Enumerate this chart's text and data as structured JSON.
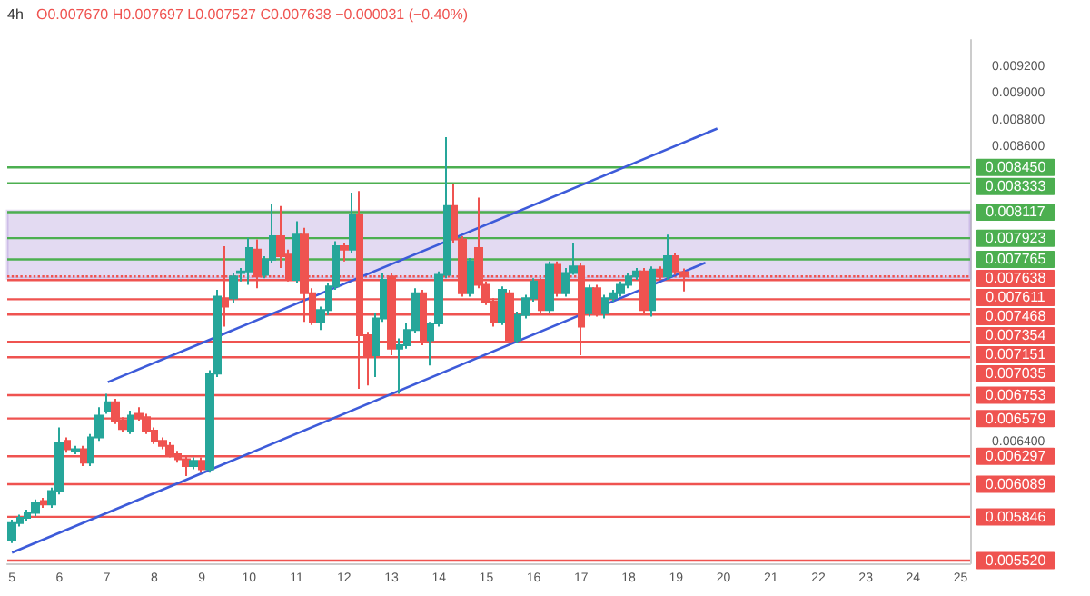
{
  "chart_data": {
    "type": "candlestick",
    "title": "4h",
    "annotations": [
      "O0.007670 H0.007697 L0.007527 C0.007638 −0.000031 (−0.40%)"
    ],
    "x": [
      5,
      5.17,
      5.33,
      5.5,
      5.67,
      5.83,
      6,
      6.17,
      6.33,
      6.5,
      6.67,
      6.83,
      7,
      7.17,
      7.33,
      7.5,
      7.67,
      7.83,
      8,
      8.17,
      8.33,
      8.5,
      8.67,
      8.83,
      9,
      9.17,
      9.33,
      9.5,
      9.67,
      9.83,
      10,
      10.17,
      10.33,
      10.5,
      10.67,
      10.83,
      11,
      11.17,
      11.33,
      11.5,
      11.67,
      11.83,
      12,
      12.17,
      12.33,
      12.5,
      12.67,
      12.83,
      13,
      13.17,
      13.33,
      13.5,
      13.67,
      13.83,
      14,
      14.17,
      14.33,
      14.5,
      14.67,
      14.83,
      15,
      15.17,
      15.33,
      15.5,
      15.67,
      15.83,
      16,
      16.17,
      16.33,
      16.5,
      16.67,
      16.83,
      17,
      17.17,
      17.33,
      17.5,
      17.67,
      17.83,
      18,
      18.17,
      18.33,
      18.5,
      18.67,
      18.83,
      19,
      19.17
    ],
    "ohlc": [
      [
        0.005675,
        0.005825,
        0.00565,
        0.0058
      ],
      [
        0.0058,
        0.005863,
        0.005775,
        0.005838
      ],
      [
        0.005838,
        0.0059,
        0.005813,
        0.005875
      ],
      [
        0.005875,
        0.005975,
        0.00585,
        0.00595
      ],
      [
        0.005963,
        0.005988,
        0.005913,
        0.005938
      ],
      [
        0.005938,
        0.006063,
        0.005913,
        0.006038
      ],
      [
        0.006038,
        0.006513,
        0.006013,
        0.0064
      ],
      [
        0.006413,
        0.006438,
        0.006325,
        0.00635
      ],
      [
        0.006338,
        0.006375,
        0.006313,
        0.00635
      ],
      [
        0.00635,
        0.006375,
        0.006225,
        0.00625
      ],
      [
        0.00625,
        0.006463,
        0.006225,
        0.006438
      ],
      [
        0.006438,
        0.006663,
        0.006413,
        0.0066
      ],
      [
        0.006638,
        0.006763,
        0.006613,
        0.0067
      ],
      [
        0.0067,
        0.006725,
        0.006538,
        0.006563
      ],
      [
        0.006563,
        0.006588,
        0.006475,
        0.0065
      ],
      [
        0.006488,
        0.006638,
        0.006463,
        0.0066
      ],
      [
        0.006613,
        0.006663,
        0.006563,
        0.006588
      ],
      [
        0.006588,
        0.006613,
        0.006463,
        0.006488
      ],
      [
        0.006488,
        0.006513,
        0.006388,
        0.006413
      ],
      [
        0.006413,
        0.006438,
        0.00635,
        0.006375
      ],
      [
        0.006375,
        0.0064,
        0.006288,
        0.006313
      ],
      [
        0.006313,
        0.006338,
        0.00625,
        0.006275
      ],
      [
        0.006275,
        0.0063,
        0.00615,
        0.006225
      ],
      [
        0.006225,
        0.006288,
        0.0062,
        0.006263
      ],
      [
        0.006263,
        0.006288,
        0.006175,
        0.0062
      ],
      [
        0.0062,
        0.006938,
        0.006175,
        0.006913
      ],
      [
        0.006913,
        0.007538,
        0.006888,
        0.007488
      ],
      [
        0.007475,
        0.007863,
        0.007263,
        0.007413
      ],
      [
        0.007475,
        0.007663,
        0.007438,
        0.007638
      ],
      [
        0.007663,
        0.0077,
        0.0076,
        0.007675
      ],
      [
        0.007675,
        0.007925,
        0.007575,
        0.00785
      ],
      [
        0.007838,
        0.007913,
        0.00755,
        0.007638
      ],
      [
        0.00765,
        0.007788,
        0.007625,
        0.007763
      ],
      [
        0.007763,
        0.008175,
        0.007738,
        0.007938
      ],
      [
        0.007938,
        0.008163,
        0.0077,
        0.007788
      ],
      [
        0.0078,
        0.007838,
        0.0076,
        0.007613
      ],
      [
        0.007613,
        0.00805,
        0.007588,
        0.00795
      ],
      [
        0.00795,
        0.008,
        0.0073,
        0.007513
      ],
      [
        0.007513,
        0.00755,
        0.007275,
        0.0073
      ],
      [
        0.0073,
        0.007413,
        0.007238,
        0.007388
      ],
      [
        0.007388,
        0.007588,
        0.00735,
        0.007563
      ],
      [
        0.007563,
        0.0079,
        0.007538,
        0.007863
      ],
      [
        0.007863,
        0.007888,
        0.00775,
        0.007838
      ],
      [
        0.007838,
        0.008263,
        0.007813,
        0.0081
      ],
      [
        0.0081,
        0.008275,
        0.0068,
        0.0072
      ],
      [
        0.0072,
        0.007225,
        0.006825,
        0.00705
      ],
      [
        0.00705,
        0.007363,
        0.006888,
        0.007325
      ],
      [
        0.007325,
        0.007663,
        0.0073,
        0.007613
      ],
      [
        0.007638,
        0.007663,
        0.00705,
        0.0071
      ],
      [
        0.0071,
        0.007175,
        0.006763,
        0.007125
      ],
      [
        0.007125,
        0.007288,
        0.0071,
        0.007238
      ],
      [
        0.007238,
        0.00755,
        0.007213,
        0.007513
      ],
      [
        0.007513,
        0.007538,
        0.007125,
        0.007163
      ],
      [
        0.007163,
        0.0073,
        0.006975,
        0.007288
      ],
      [
        0.007288,
        0.007675,
        0.007263,
        0.00765
      ],
      [
        0.00765,
        0.008675,
        0.007625,
        0.008163
      ],
      [
        0.008163,
        0.008325,
        0.007888,
        0.007913
      ],
      [
        0.007913,
        0.007938,
        0.007488,
        0.007513
      ],
      [
        0.007513,
        0.007775,
        0.007488,
        0.00775
      ],
      [
        0.00785,
        0.008225,
        0.00755,
        0.007575
      ],
      [
        0.007575,
        0.0076,
        0.007425,
        0.00745
      ],
      [
        0.00745,
        0.007475,
        0.007263,
        0.0073
      ],
      [
        0.0073,
        0.007563,
        0.007275,
        0.007538
      ],
      [
        0.007513,
        0.007538,
        0.007138,
        0.007163
      ],
      [
        0.007163,
        0.007375,
        0.007138,
        0.00735
      ],
      [
        0.00735,
        0.0075,
        0.007325,
        0.007475
      ],
      [
        0.007475,
        0.007625,
        0.00745,
        0.0076
      ],
      [
        0.0076,
        0.007625,
        0.007363,
        0.007388
      ],
      [
        0.007388,
        0.00775,
        0.007363,
        0.007725
      ],
      [
        0.007725,
        0.00775,
        0.007488,
        0.007513
      ],
      [
        0.007513,
        0.0077,
        0.007488,
        0.007663
      ],
      [
        0.007663,
        0.007888,
        0.00765,
        0.007713
      ],
      [
        0.007713,
        0.007738,
        0.00705,
        0.007263
      ],
      [
        0.007363,
        0.007575,
        0.007338,
        0.00755
      ],
      [
        0.00755,
        0.007575,
        0.007338,
        0.007363
      ],
      [
        0.007363,
        0.0075,
        0.007325,
        0.007475
      ],
      [
        0.007475,
        0.007538,
        0.00745,
        0.007513
      ],
      [
        0.007513,
        0.0076,
        0.007488,
        0.007575
      ],
      [
        0.007575,
        0.007663,
        0.00755,
        0.007638
      ],
      [
        0.007638,
        0.0077,
        0.007613,
        0.007675
      ],
      [
        0.007675,
        0.0077,
        0.007363,
        0.007388
      ],
      [
        0.007388,
        0.007713,
        0.007338,
        0.007688
      ],
      [
        0.007688,
        0.007713,
        0.00762,
        0.007638
      ],
      [
        0.007638,
        0.00795,
        0.007613,
        0.007788
      ],
      [
        0.007788,
        0.007813,
        0.00765,
        0.007675
      ],
      [
        0.00767,
        0.007697,
        0.007527,
        0.007638
      ]
    ],
    "series": [
      {
        "type": "line",
        "x": [
          5,
          19.62
        ],
        "values": [
          0.00558,
          0.00774
        ],
        "color": "#3d5bd9"
      },
      {
        "type": "line",
        "x": [
          7.02,
          19.87
        ],
        "values": [
          0.00685,
          0.00874
        ],
        "color": "#3d5bd9"
      }
    ],
    "xlim": [
      4.9,
      25.2
    ],
    "xticks": [
      5,
      6,
      7,
      8,
      9,
      10,
      11,
      12,
      13,
      14,
      15,
      16,
      17,
      18,
      19,
      20,
      21,
      22,
      23,
      24,
      25
    ],
    "ylim": [
      0.0055,
      0.0094
    ],
    "yticks": [
      {
        "value": 0.0092,
        "label": "0.009200"
      },
      {
        "value": 0.009,
        "label": "0.009000"
      },
      {
        "value": 0.0088,
        "label": "0.008800"
      },
      {
        "value": 0.0086,
        "label": "0.008600"
      },
      {
        "value": 0.0064,
        "label": "0.006400"
      }
    ],
    "ref_lines": [
      {
        "axis": "y",
        "value": 0.00845,
        "label": "0.008450",
        "color": "#4caf50"
      },
      {
        "axis": "y",
        "value": 0.008333,
        "label": "0.008333",
        "color": "#4caf50"
      },
      {
        "axis": "y",
        "value": 0.008117,
        "label": "0.008117",
        "color": "#4caf50"
      },
      {
        "axis": "y",
        "value": 0.007923,
        "label": "0.007923",
        "color": "#4caf50"
      },
      {
        "axis": "y",
        "value": 0.007765,
        "label": "0.007765",
        "color": "#4caf50"
      },
      {
        "axis": "y",
        "value": 0.007638,
        "label": "0.007638",
        "color": "#ef5350",
        "line_style": "dotted"
      },
      {
        "axis": "y",
        "value": 0.007611,
        "label": "0.007611",
        "color": "#ef5350"
      },
      {
        "axis": "y",
        "value": 0.007468,
        "label": "0.007468",
        "color": "#ef5350"
      },
      {
        "axis": "y",
        "value": 0.007354,
        "label": "0.007354",
        "color": "#ef5350"
      },
      {
        "axis": "y",
        "value": 0.007151,
        "label": "0.007151",
        "color": "#ef5350"
      },
      {
        "axis": "y",
        "value": 0.007035,
        "label": "0.007035",
        "color": "#ef5350"
      },
      {
        "axis": "y",
        "value": 0.006753,
        "label": "0.006753",
        "color": "#ef5350"
      },
      {
        "axis": "y",
        "value": 0.006579,
        "label": "0.006579",
        "color": "#ef5350"
      },
      {
        "axis": "y",
        "value": 0.006297,
        "label": "0.006297",
        "color": "#ef5350"
      },
      {
        "axis": "y",
        "value": 0.006089,
        "label": "0.006089",
        "color": "#ef5350"
      },
      {
        "axis": "y",
        "value": 0.005846,
        "label": "0.005846",
        "color": "#ef5350"
      },
      {
        "axis": "y",
        "value": 0.00552,
        "label": "0.005520",
        "color": "#ef5350"
      }
    ],
    "bands": [
      {
        "axis": "y",
        "from": 0.007625,
        "to": 0.008125,
        "color": "#7e57c2"
      }
    ],
    "grid": false
  }
}
